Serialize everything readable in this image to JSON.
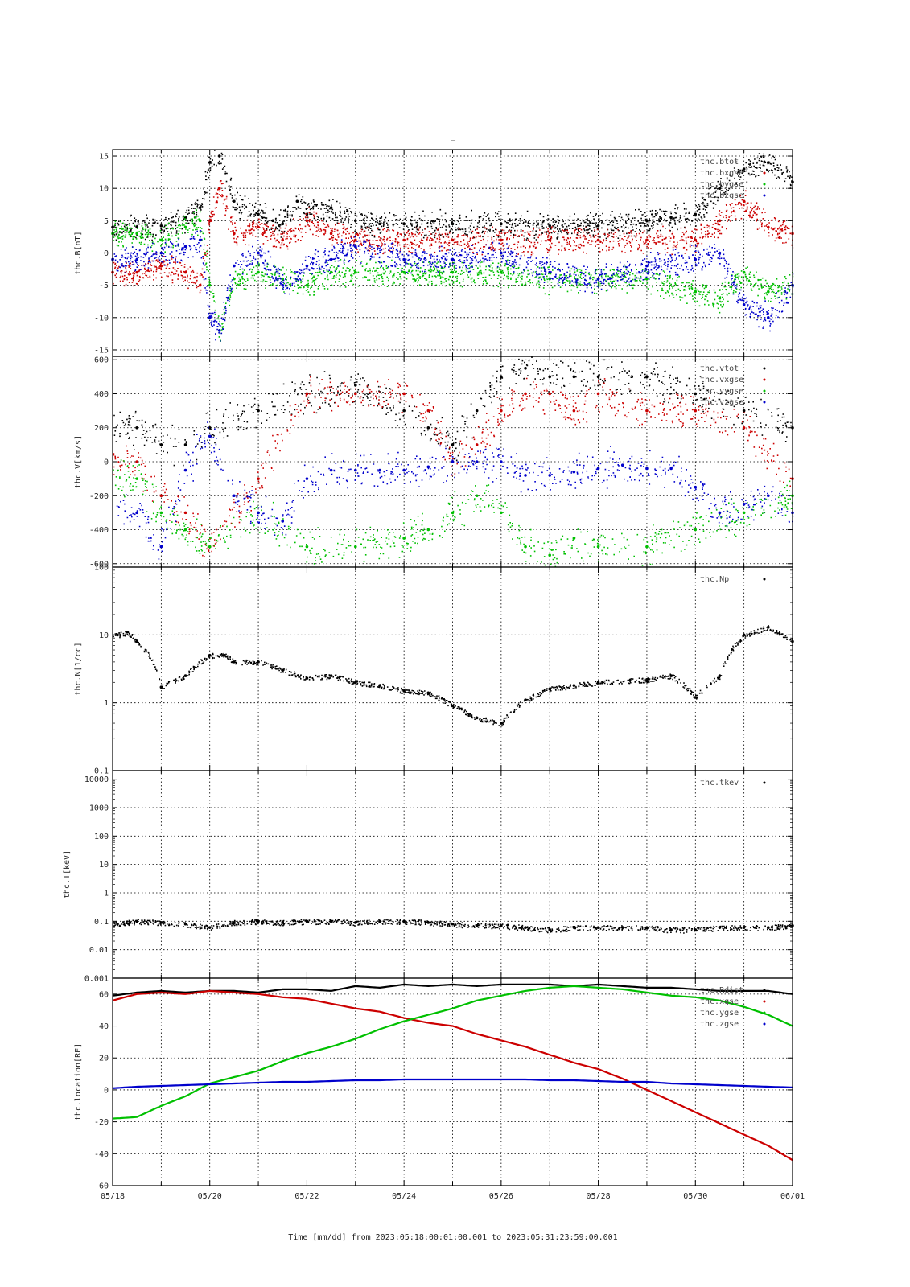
{
  "figure_title": "_",
  "colors": {
    "black": "#000000",
    "red": "#cc0000",
    "green": "#00c000",
    "blue": "#0000cc"
  },
  "x_axis": {
    "label": "Time [mm/dd]  from 2023:05:18:00:01:00.001  to  2023:05:31:23:59:00.001",
    "start": "05/18",
    "end": "06/01",
    "tick_labels": [
      "05/18",
      "05/20",
      "05/22",
      "05/24",
      "05/26",
      "05/28",
      "05/30",
      "06/01"
    ],
    "range_days": [
      0,
      14
    ]
  },
  "chart_data": [
    {
      "type": "scatter",
      "ylabel": "thc.B[nT]",
      "ylim": [
        -16,
        16
      ],
      "yticks": [
        -15,
        -10,
        -5,
        0,
        5,
        10,
        15
      ],
      "ytick_labels": [
        "-15",
        "-10",
        "-5",
        "0",
        "5",
        "10",
        "15"
      ],
      "grid": true,
      "legend_placement": "top-right",
      "series": [
        {
          "name": "thc.btot",
          "color": "black",
          "x": [
            0,
            0.5,
            1,
            1.5,
            1.8,
            2,
            2.2,
            2.5,
            3,
            3.3,
            3.5,
            3.8,
            4,
            4.5,
            5,
            5.5,
            6,
            7,
            8,
            9,
            10,
            11,
            11.5,
            12,
            12.5,
            13,
            13.5,
            14
          ],
          "y": [
            4,
            4,
            4.2,
            5.5,
            7,
            14,
            15,
            8,
            6,
            5,
            4.5,
            8,
            6,
            7,
            5,
            4.5,
            4.5,
            4.5,
            4.5,
            4.2,
            4.2,
            5,
            5.5,
            6,
            10,
            13,
            14,
            11
          ]
        },
        {
          "name": "thc.bxgse",
          "color": "red",
          "x": [
            0,
            0.5,
            1,
            1.5,
            1.8,
            2,
            2.2,
            2.5,
            3,
            3.5,
            4,
            4.5,
            5,
            6,
            7,
            8,
            9,
            10,
            11,
            12,
            12.5,
            13,
            13.5,
            14
          ],
          "y": [
            -3,
            -3,
            -2,
            -3,
            -5,
            5,
            10,
            3,
            4,
            2,
            5,
            3,
            2,
            2,
            2,
            2,
            2,
            2,
            2,
            2,
            5,
            8,
            4,
            3
          ]
        },
        {
          "name": "thc.bygse",
          "color": "green",
          "x": [
            0,
            0.5,
            1,
            1.5,
            1.8,
            2,
            2.2,
            2.5,
            3,
            3.5,
            4,
            4.5,
            5,
            6,
            7,
            8,
            9,
            10,
            11,
            12,
            12.5,
            13,
            13.5,
            14
          ],
          "y": [
            3,
            3,
            2,
            4,
            5,
            -5,
            -12,
            -4,
            -3,
            -4,
            -5,
            -3,
            -3,
            -3,
            -3,
            -3,
            -4,
            -4,
            -4,
            -6,
            -7,
            -3,
            -6,
            -5
          ]
        },
        {
          "name": "thc.bzgse",
          "color": "blue",
          "x": [
            0,
            0.5,
            1,
            1.5,
            1.8,
            2,
            2.2,
            2.5,
            3,
            3.5,
            4,
            4.5,
            5,
            6,
            7,
            8,
            9,
            10,
            11,
            12,
            12.5,
            13,
            13.5,
            14
          ],
          "y": [
            -1,
            -1,
            0,
            1,
            2,
            -10,
            -12,
            -2,
            0,
            -5,
            -2,
            -1,
            1,
            -1,
            -1,
            0,
            -3,
            -4,
            -2,
            -1,
            0,
            -8,
            -10,
            -5
          ]
        }
      ]
    },
    {
      "type": "scatter",
      "ylabel": "thc.V[km/s]",
      "ylim": [
        -620,
        620
      ],
      "yticks": [
        -600,
        -400,
        -200,
        0,
        200,
        400,
        600
      ],
      "ytick_labels": [
        "-600",
        "-400",
        "-200",
        "0",
        "200",
        "400",
        "600"
      ],
      "grid": true,
      "legend_placement": "top-right",
      "series": [
        {
          "name": "thc.vtot",
          "color": "black",
          "x": [
            0.5,
            1,
            1.5,
            2,
            3,
            4,
            5,
            6,
            6.5,
            7,
            7.5,
            8,
            8.5,
            9,
            9.5,
            10,
            11,
            12,
            13,
            14
          ],
          "y": [
            200,
            100,
            100,
            200,
            300,
            400,
            450,
            300,
            200,
            100,
            300,
            500,
            550,
            500,
            500,
            500,
            500,
            400,
            300,
            200
          ]
        },
        {
          "name": "thc.vxgse",
          "color": "red",
          "x": [
            0.5,
            1,
            1.5,
            2,
            3,
            4,
            5,
            6,
            6.5,
            7,
            7.5,
            8,
            8.5,
            9,
            9.5,
            10,
            11,
            12,
            13,
            14
          ],
          "y": [
            0,
            -200,
            -300,
            -500,
            -100,
            400,
            400,
            400,
            300,
            0,
            100,
            300,
            400,
            400,
            300,
            400,
            300,
            300,
            200,
            -100
          ]
        },
        {
          "name": "thc.vygse",
          "color": "green",
          "x": [
            0.5,
            1,
            1.5,
            2,
            3,
            4,
            5,
            6,
            6.5,
            7,
            7.5,
            8,
            8.5,
            9,
            9.5,
            10,
            11,
            12,
            13,
            14
          ],
          "y": [
            -100,
            -300,
            -400,
            -500,
            -300,
            -500,
            -500,
            -450,
            -400,
            -300,
            -200,
            -300,
            -500,
            -550,
            -450,
            -500,
            -500,
            -400,
            -300,
            -200
          ]
        },
        {
          "name": "thc.vzgse",
          "color": "blue",
          "x": [
            0.5,
            1,
            1.5,
            2,
            2.5,
            3,
            3.5,
            4,
            4.5,
            5,
            5.5,
            6,
            6.5,
            7,
            7.5,
            8,
            8.5,
            9,
            9.5,
            10,
            10.5,
            11,
            11.5,
            12,
            12.5,
            13,
            13.5,
            14
          ],
          "y": [
            -300,
            -500,
            -50,
            150,
            -200,
            -300,
            -350,
            -100,
            -50,
            -50,
            -50,
            -50,
            -30,
            0,
            0,
            0,
            -80,
            -80,
            -60,
            -40,
            -20,
            -40,
            -40,
            -150,
            -300,
            -250,
            -200,
            -300
          ]
        }
      ]
    },
    {
      "type": "scatter",
      "ylabel": "thc.N[1/cc]",
      "yscale": "log",
      "ylim": [
        0.1,
        100
      ],
      "yticks": [
        0.1,
        1,
        10,
        100
      ],
      "ytick_labels": [
        "0.1",
        "1",
        "10",
        "100"
      ],
      "grid": true,
      "legend_placement": "top-right",
      "series": [
        {
          "name": "thc.Np",
          "color": "black",
          "x": [
            0.1,
            0.3,
            0.5,
            1,
            1.5,
            2,
            2.3,
            2.5,
            3,
            3.5,
            4,
            4.5,
            5,
            5.5,
            6,
            6.5,
            7,
            7.5,
            8,
            8.5,
            9,
            9.5,
            10,
            11,
            11.5,
            12,
            12.5,
            13,
            13.5,
            14
          ],
          "y": [
            10,
            11,
            8,
            1.7,
            2.5,
            5,
            5,
            4,
            4,
            3,
            2.3,
            2.5,
            2,
            1.8,
            1.5,
            1.4,
            0.9,
            0.6,
            0.5,
            1.1,
            1.6,
            1.8,
            2,
            2.2,
            2.5,
            1.2,
            2.5,
            10,
            13,
            8
          ]
        }
      ]
    },
    {
      "type": "scatter",
      "ylabel": "thc.T[keV]",
      "yscale": "log",
      "ylim": [
        0.001,
        20000
      ],
      "yticks": [
        0.001,
        0.01,
        0.1,
        1,
        10,
        100,
        1000,
        10000
      ],
      "ytick_labels": [
        "0.001",
        "0.01",
        "0.1",
        "1",
        "10",
        "100",
        "1000",
        "10000"
      ],
      "grid": true,
      "legend_placement": "top-right",
      "series": [
        {
          "name": "thc.tkev",
          "color": "black",
          "x": [
            0.1,
            0.5,
            1,
            1.5,
            2,
            2.5,
            3,
            3.5,
            4,
            4.5,
            5,
            5.5,
            6,
            6.5,
            7,
            7.5,
            8,
            8.5,
            9,
            9.5,
            10,
            10.5,
            11,
            11.5,
            12,
            12.5,
            13,
            13.5,
            14
          ],
          "y": [
            0.08,
            0.1,
            0.09,
            0.08,
            0.06,
            0.09,
            0.1,
            0.09,
            0.1,
            0.1,
            0.09,
            0.1,
            0.1,
            0.09,
            0.08,
            0.07,
            0.07,
            0.06,
            0.05,
            0.06,
            0.06,
            0.06,
            0.06,
            0.05,
            0.05,
            0.06,
            0.06,
            0.06,
            0.07
          ]
        }
      ]
    },
    {
      "type": "line",
      "ylabel": "thc.location[RE]",
      "ylim": [
        -60,
        70
      ],
      "yticks": [
        -60,
        -40,
        -20,
        0,
        20,
        40,
        60
      ],
      "ytick_labels": [
        "-60",
        "-40",
        "-20",
        "0",
        "20",
        "40",
        "60"
      ],
      "grid": true,
      "legend_placement": "top-right",
      "series": [
        {
          "name": "thc.Rdist",
          "color": "black",
          "x": [
            0,
            0.5,
            1,
            1.5,
            2,
            2.5,
            3,
            3.5,
            4,
            4.5,
            5,
            5.5,
            6,
            6.5,
            7,
            7.5,
            8,
            8.5,
            9,
            9.5,
            10,
            10.5,
            11,
            11.5,
            12,
            12.5,
            13,
            13.5,
            14
          ],
          "y": [
            59,
            61,
            62,
            61,
            62,
            62,
            61,
            63,
            63,
            62,
            65,
            64,
            66,
            65,
            66,
            65,
            66,
            66,
            66,
            65,
            66,
            65,
            64,
            64,
            63,
            62,
            62,
            62,
            60
          ]
        },
        {
          "name": "thc.xgse",
          "color": "red",
          "x": [
            0,
            0.5,
            1,
            1.5,
            2,
            2.5,
            3,
            3.5,
            4,
            4.5,
            5,
            5.5,
            6,
            6.5,
            7,
            7.5,
            8,
            8.5,
            9,
            9.5,
            10,
            10.5,
            11,
            11.5,
            12,
            12.5,
            13,
            13.5,
            14
          ],
          "y": [
            56,
            60,
            61,
            60,
            62,
            61,
            60,
            58,
            57,
            54,
            51,
            49,
            45,
            42,
            40,
            35,
            31,
            27,
            22,
            17,
            13,
            7,
            0,
            -7,
            -14,
            -21,
            -28,
            -35,
            -44
          ]
        },
        {
          "name": "thc.ygse",
          "color": "green",
          "x": [
            0,
            0.5,
            1,
            1.5,
            2,
            2.5,
            3,
            3.5,
            4,
            4.5,
            5,
            5.5,
            6,
            6.5,
            7,
            7.5,
            8,
            8.5,
            9,
            9.5,
            10,
            10.5,
            11,
            11.5,
            12,
            12.5,
            13,
            13.5,
            14
          ],
          "y": [
            -18,
            -17,
            -10,
            -4,
            4,
            8,
            12,
            18,
            23,
            27,
            32,
            38,
            43,
            47,
            51,
            56,
            59,
            62,
            64,
            65,
            64,
            63,
            61,
            59,
            58,
            56,
            52,
            47,
            40
          ]
        },
        {
          "name": "thc.zgse",
          "color": "blue",
          "x": [
            0,
            0.5,
            1,
            1.5,
            2,
            2.5,
            3,
            3.5,
            4,
            4.5,
            5,
            5.5,
            6,
            6.5,
            7,
            7.5,
            8,
            8.5,
            9,
            9.5,
            10,
            10.5,
            11,
            11.5,
            12,
            12.5,
            13,
            13.5,
            14
          ],
          "y": [
            1,
            2,
            2.5,
            3,
            3.5,
            4,
            4.5,
            5,
            5,
            5.5,
            6,
            6,
            6.5,
            6.5,
            6.5,
            6.5,
            6.5,
            6.5,
            6,
            6,
            5.5,
            5,
            5,
            4,
            3.5,
            3,
            2.5,
            2,
            1.5
          ]
        }
      ]
    }
  ]
}
